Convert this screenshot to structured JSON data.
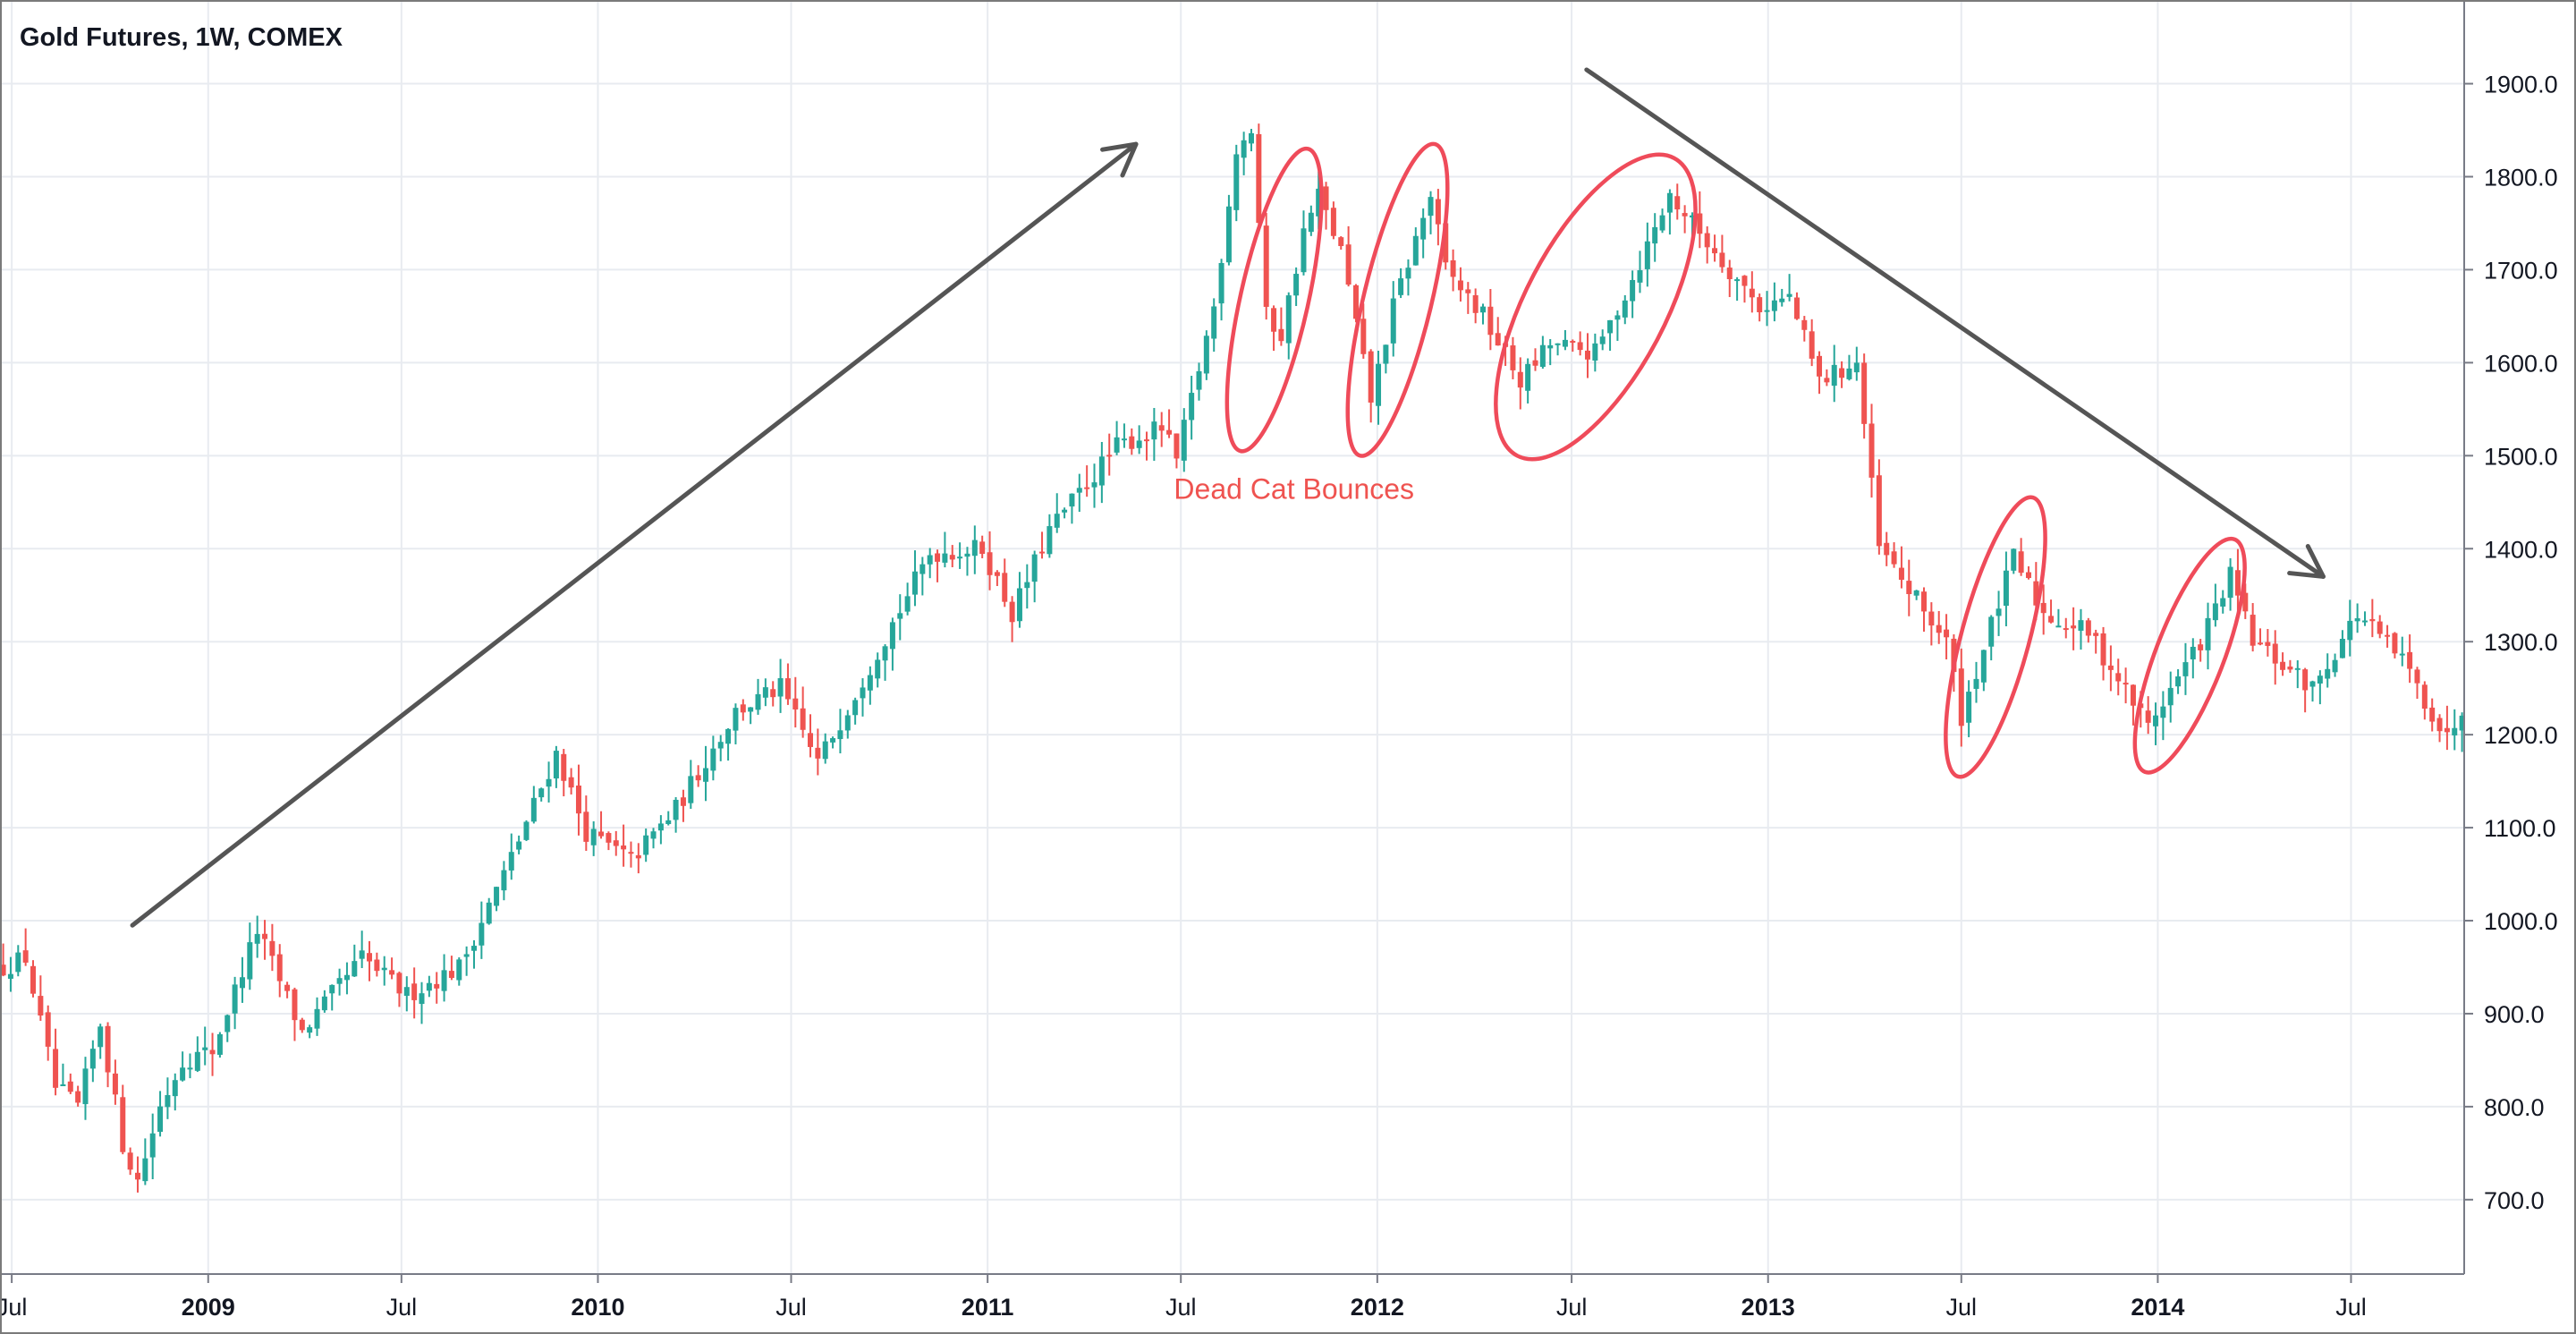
{
  "chart_data": {
    "type": "candlestick",
    "title": "Gold Futures, 1W, COMEX",
    "xlabel": "",
    "ylabel": "",
    "y_ticks": [
      "700.0",
      "800.0",
      "900.0",
      "1000.0",
      "1100.0",
      "1200.0",
      "1300.0",
      "1400.0",
      "1500.0",
      "1600.0",
      "1700.0",
      "1800.0",
      "1900.0"
    ],
    "x_ticks": [
      {
        "label": "Jul",
        "date": "2008-07-01",
        "bold": false
      },
      {
        "label": "2009",
        "date": "2009-01-01",
        "bold": true
      },
      {
        "label": "Jul",
        "date": "2009-07-01",
        "bold": false
      },
      {
        "label": "2010",
        "date": "2010-01-01",
        "bold": true
      },
      {
        "label": "Jul",
        "date": "2010-07-01",
        "bold": false
      },
      {
        "label": "2011",
        "date": "2011-01-01",
        "bold": true
      },
      {
        "label": "Jul",
        "date": "2011-07-01",
        "bold": false
      },
      {
        "label": "2012",
        "date": "2012-01-01",
        "bold": true
      },
      {
        "label": "Jul",
        "date": "2012-07-01",
        "bold": false
      },
      {
        "label": "2013",
        "date": "2013-01-01",
        "bold": true
      },
      {
        "label": "Jul",
        "date": "2013-07-01",
        "bold": false
      },
      {
        "label": "2014",
        "date": "2014-01-01",
        "bold": true
      },
      {
        "label": "Jul",
        "date": "2014-07-01",
        "bold": false
      }
    ],
    "x_range": [
      "2008-06-20",
      "2014-10-15"
    ],
    "ylim": [
      620,
      1990
    ],
    "grid": true,
    "up_color": "#26a69a",
    "down_color": "#ef5350",
    "annotation_color": "#ef4b5a",
    "annotations": {
      "label": "Dead Cat Bounces",
      "label_anchor": {
        "date": "2011-10-15",
        "price": 1465
      },
      "bounces": [
        {
          "from": {
            "date": "2011-08-26",
            "price": 1505
          },
          "to": {
            "date": "2011-10-28",
            "price": 1830
          }
        },
        {
          "from": {
            "date": "2011-12-16",
            "price": 1500
          },
          "to": {
            "date": "2012-02-24",
            "price": 1835
          }
        },
        {
          "from": {
            "date": "2012-05-11",
            "price": 1500
          },
          "to": {
            "date": "2012-10-05",
            "price": 1820
          }
        },
        {
          "from": {
            "date": "2013-06-28",
            "price": 1155
          },
          "to": {
            "date": "2013-09-06",
            "price": 1455
          }
        },
        {
          "from": {
            "date": "2013-12-20",
            "price": 1160
          },
          "to": {
            "date": "2014-03-14",
            "price": 1410
          }
        }
      ],
      "trend_up": {
        "from": {
          "date": "2008-10-22",
          "price": 995
        },
        "to": {
          "date": "2011-05-20",
          "price": 1835
        }
      },
      "trend_down": {
        "from": {
          "date": "2012-07-15",
          "price": 1915
        },
        "to": {
          "date": "2014-06-05",
          "price": 1370
        }
      }
    },
    "anchors": [
      {
        "date": "2008-06-27",
        "price": 950
      },
      {
        "date": "2008-07-18",
        "price": 960
      },
      {
        "date": "2008-08-15",
        "price": 820
      },
      {
        "date": "2008-09-05",
        "price": 800
      },
      {
        "date": "2008-09-26",
        "price": 890
      },
      {
        "date": "2008-10-17",
        "price": 760
      },
      {
        "date": "2008-10-31",
        "price": 720
      },
      {
        "date": "2008-11-21",
        "price": 800
      },
      {
        "date": "2008-12-12",
        "price": 850
      },
      {
        "date": "2009-01-09",
        "price": 860
      },
      {
        "date": "2009-02-20",
        "price": 990
      },
      {
        "date": "2009-04-03",
        "price": 880
      },
      {
        "date": "2009-05-29",
        "price": 960
      },
      {
        "date": "2009-07-10",
        "price": 920
      },
      {
        "date": "2009-08-28",
        "price": 950
      },
      {
        "date": "2009-10-09",
        "price": 1050
      },
      {
        "date": "2009-11-27",
        "price": 1180
      },
      {
        "date": "2009-12-25",
        "price": 1095
      },
      {
        "date": "2010-02-05",
        "price": 1065
      },
      {
        "date": "2010-03-19",
        "price": 1120
      },
      {
        "date": "2010-05-14",
        "price": 1225
      },
      {
        "date": "2010-06-25",
        "price": 1250
      },
      {
        "date": "2010-07-30",
        "price": 1170
      },
      {
        "date": "2010-09-24",
        "price": 1290
      },
      {
        "date": "2010-11-12",
        "price": 1395
      },
      {
        "date": "2010-12-31",
        "price": 1400
      },
      {
        "date": "2011-01-28",
        "price": 1330
      },
      {
        "date": "2011-03-04",
        "price": 1420
      },
      {
        "date": "2011-05-06",
        "price": 1510
      },
      {
        "date": "2011-06-17",
        "price": 1530
      },
      {
        "date": "2011-07-01",
        "price": 1495
      },
      {
        "date": "2011-08-05",
        "price": 1660
      },
      {
        "date": "2011-08-26",
        "price": 1830
      },
      {
        "date": "2011-09-09",
        "price": 1850
      },
      {
        "date": "2011-09-23",
        "price": 1650
      },
      {
        "date": "2011-10-07",
        "price": 1630
      },
      {
        "date": "2011-10-28",
        "price": 1740
      },
      {
        "date": "2011-11-11",
        "price": 1780
      },
      {
        "date": "2011-12-02",
        "price": 1720
      },
      {
        "date": "2011-12-30",
        "price": 1560
      },
      {
        "date": "2012-01-20",
        "price": 1660
      },
      {
        "date": "2012-02-24",
        "price": 1780
      },
      {
        "date": "2012-03-09",
        "price": 1700
      },
      {
        "date": "2012-04-13",
        "price": 1650
      },
      {
        "date": "2012-05-18",
        "price": 1580
      },
      {
        "date": "2012-06-15",
        "price": 1620
      },
      {
        "date": "2012-07-27",
        "price": 1610
      },
      {
        "date": "2012-08-31",
        "price": 1690
      },
      {
        "date": "2012-10-05",
        "price": 1780
      },
      {
        "date": "2012-11-09",
        "price": 1730
      },
      {
        "date": "2012-12-28",
        "price": 1660
      },
      {
        "date": "2013-01-25",
        "price": 1670
      },
      {
        "date": "2013-02-22",
        "price": 1580
      },
      {
        "date": "2013-03-29",
        "price": 1600
      },
      {
        "date": "2013-04-19",
        "price": 1400
      },
      {
        "date": "2013-06-21",
        "price": 1300
      },
      {
        "date": "2013-07-05",
        "price": 1220
      },
      {
        "date": "2013-08-23",
        "price": 1390
      },
      {
        "date": "2013-09-20",
        "price": 1330
      },
      {
        "date": "2013-11-01",
        "price": 1310
      },
      {
        "date": "2013-12-27",
        "price": 1210
      },
      {
        "date": "2014-02-14",
        "price": 1300
      },
      {
        "date": "2014-03-14",
        "price": 1370
      },
      {
        "date": "2014-04-04",
        "price": 1300
      },
      {
        "date": "2014-05-30",
        "price": 1250
      },
      {
        "date": "2014-07-11",
        "price": 1330
      },
      {
        "date": "2014-08-22",
        "price": 1280
      },
      {
        "date": "2014-10-03",
        "price": 1195
      },
      {
        "date": "2014-10-17",
        "price": 1230
      }
    ]
  }
}
